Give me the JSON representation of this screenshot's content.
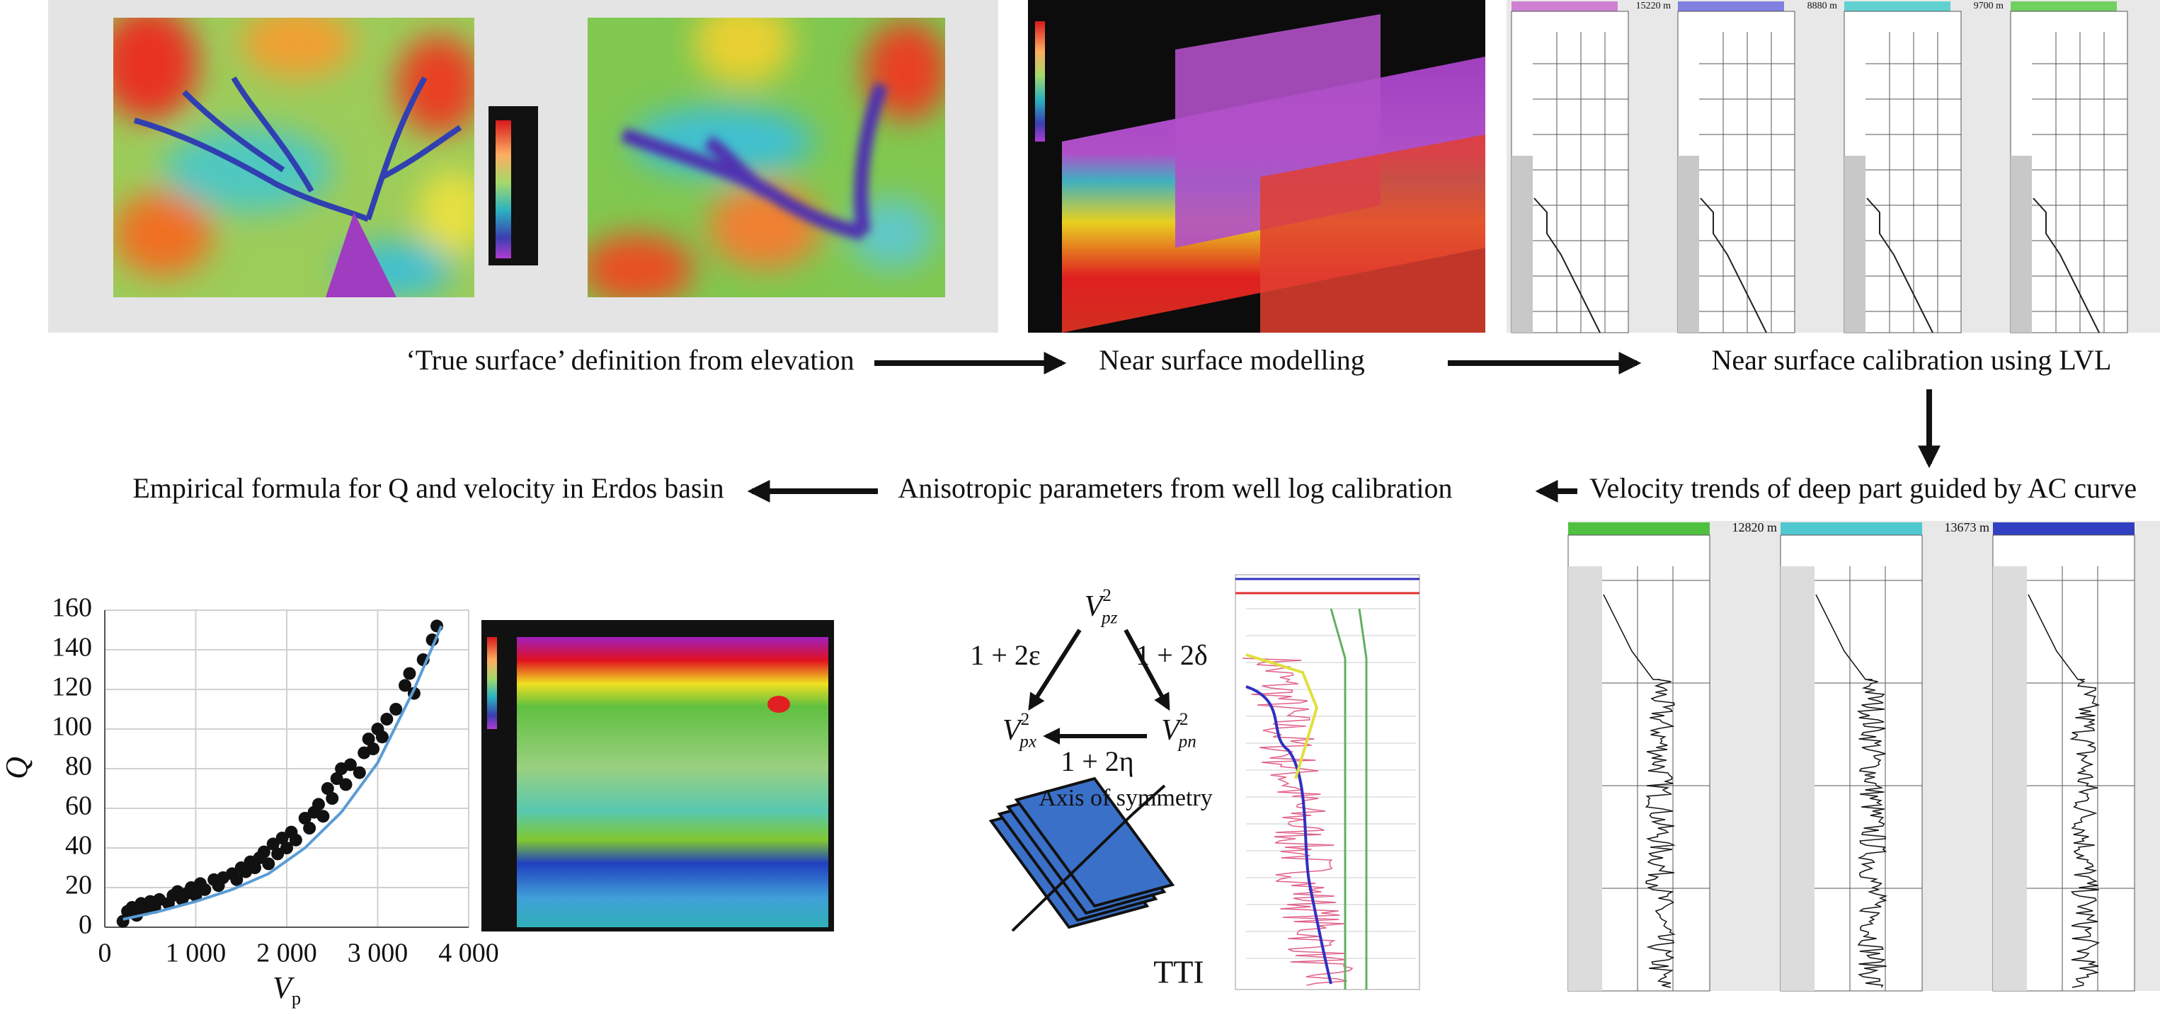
{
  "steps": {
    "top": [
      "‘True surface’ definition from elevation",
      "Near surface modelling",
      "Near surface calibration using LVL"
    ],
    "middle": [
      "Empirical formula for Q and velocity in Erdos basin",
      "Anisotropic parameters from well log calibration",
      "Velocity trends of deep part guided by AC curve"
    ]
  },
  "well_labels": {
    "top": [
      "15220 m",
      "8880 m",
      "9700 m"
    ],
    "bottom": [
      "12820 m",
      "13673 m"
    ]
  },
  "tti": {
    "vpz": {
      "base": "V",
      "sub": "pz",
      "sup": "2"
    },
    "vpx": {
      "base": "V",
      "sub": "px",
      "sup": "2"
    },
    "vpn": {
      "base": "V",
      "sub": "pn",
      "sup": "2"
    },
    "epsilon": "1 + 2ε",
    "delta": "1 + 2δ",
    "eta": "1 + 2η",
    "axis": "Axis of symmetry",
    "model": "TTI"
  },
  "q_chart": {
    "type": "scatter",
    "y_label": "Q",
    "x_label": {
      "base": "V",
      "sub": "p"
    },
    "xlim": [
      0,
      4000
    ],
    "ylim": [
      0,
      160
    ],
    "xticks": [
      0,
      {
        "value": 1000,
        "label": "1 000"
      },
      {
        "value": 2000,
        "label": "2 000"
      },
      {
        "value": 3000,
        "label": "3 000"
      },
      {
        "value": 4000,
        "label": "4 000"
      }
    ],
    "yticks": [
      0,
      20,
      40,
      60,
      80,
      100,
      120,
      140,
      160
    ],
    "grid": true,
    "color": "#111111",
    "x": [
      200,
      250,
      300,
      350,
      400,
      450,
      500,
      550,
      600,
      700,
      750,
      800,
      850,
      900,
      950,
      1000,
      1050,
      1100,
      1200,
      1250,
      1300,
      1400,
      1450,
      1500,
      1550,
      1600,
      1650,
      1700,
      1750,
      1800,
      1850,
      1900,
      1950,
      2000,
      2050,
      2100,
      2200,
      2250,
      2300,
      2350,
      2400,
      2450,
      2500,
      2550,
      2600,
      2650,
      2700,
      2800,
      2850,
      2900,
      2950,
      3000,
      3050,
      3100,
      3200,
      3300,
      3350,
      3400,
      3500,
      3600,
      3650
    ],
    "values": [
      3,
      8,
      10,
      6,
      12,
      9,
      13,
      10,
      14,
      12,
      16,
      18,
      14,
      17,
      20,
      16,
      22,
      19,
      24,
      21,
      25,
      27,
      24,
      30,
      28,
      33,
      30,
      35,
      38,
      32,
      42,
      37,
      45,
      40,
      48,
      44,
      55,
      50,
      58,
      62,
      56,
      70,
      65,
      75,
      80,
      72,
      82,
      78,
      88,
      95,
      90,
      100,
      96,
      105,
      110,
      122,
      128,
      118,
      135,
      145,
      152
    ],
    "fit": {
      "color": "#5b9bd5",
      "x": [
        200,
        600,
        1000,
        1400,
        1800,
        2200,
        2600,
        3000,
        3400,
        3700
      ],
      "values": [
        4,
        8,
        13,
        19,
        27,
        40,
        58,
        83,
        120,
        152
      ]
    }
  }
}
